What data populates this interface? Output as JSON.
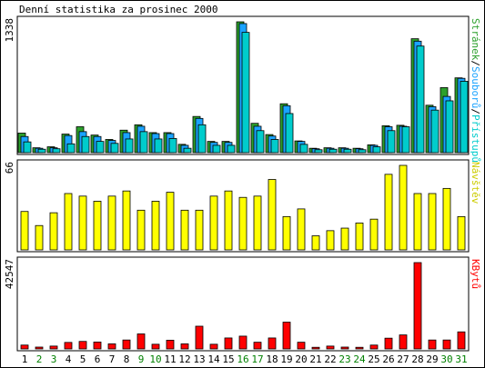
{
  "title": "Denní statistika za prosinec 2000",
  "colors": {
    "background": "#ffffff",
    "panel_bg": "#ffffff",
    "border": "#000000",
    "pages": "#2ca02c",
    "files": "#1aa3ff",
    "hits": "#00cccc",
    "visits": "#ffff00",
    "kbytes": "#ff0000",
    "weekday_label": "#000000",
    "weekend_label": "#008000"
  },
  "chart_data": [
    {
      "type": "bar",
      "id": "hits-files-pages",
      "max_label": "1338",
      "right_label_parts": [
        {
          "text": "Stránek",
          "color": "#2ca02c"
        },
        {
          "text": "/",
          "color": "#000000"
        },
        {
          "text": "Souborů",
          "color": "#1aa3ff"
        },
        {
          "text": "/",
          "color": "#000000"
        },
        {
          "text": "Přístupů",
          "color": "#00cccc"
        }
      ],
      "ylim": [
        0,
        1338
      ],
      "categories": [
        "1",
        "2",
        "3",
        "4",
        "5",
        "6",
        "7",
        "8",
        "9",
        "10",
        "11",
        "12",
        "13",
        "14",
        "15",
        "16",
        "17",
        "18",
        "19",
        "20",
        "21",
        "22",
        "23",
        "24",
        "25",
        "26",
        "27",
        "28",
        "29",
        "30",
        "31"
      ],
      "weekend_days": [
        "2",
        "3",
        "9",
        "10",
        "16",
        "17",
        "23",
        "24",
        "30",
        "31"
      ],
      "series": [
        {
          "name": "Stránek",
          "color": "#2ca02c",
          "values": [
            200,
            50,
            60,
            190,
            265,
            180,
            135,
            230,
            285,
            205,
            205,
            85,
            370,
            115,
            115,
            1338,
            300,
            185,
            500,
            120,
            45,
            50,
            50,
            45,
            80,
            275,
            280,
            1165,
            485,
            665,
            765
          ]
        },
        {
          "name": "Souborů",
          "color": "#1aa3ff",
          "values": [
            165,
            45,
            50,
            175,
            215,
            165,
            125,
            205,
            270,
            195,
            195,
            75,
            350,
            105,
            105,
            1320,
            270,
            170,
            480,
            115,
            40,
            45,
            45,
            40,
            75,
            265,
            270,
            1140,
            470,
            575,
            760
          ]
        },
        {
          "name": "Přístupů",
          "color": "#00cccc",
          "values": [
            110,
            35,
            40,
            90,
            165,
            115,
            95,
            140,
            215,
            140,
            145,
            45,
            285,
            75,
            75,
            1230,
            225,
            135,
            400,
            85,
            30,
            35,
            35,
            30,
            60,
            225,
            265,
            1090,
            435,
            530,
            730
          ]
        }
      ]
    },
    {
      "type": "bar",
      "id": "visits",
      "max_label": "66",
      "right_label_parts": [
        {
          "text": "Návštěv",
          "color": "#cccc00"
        }
      ],
      "ylim": [
        0,
        66
      ],
      "categories": [
        "1",
        "2",
        "3",
        "4",
        "5",
        "6",
        "7",
        "8",
        "9",
        "10",
        "11",
        "12",
        "13",
        "14",
        "15",
        "16",
        "17",
        "18",
        "19",
        "20",
        "21",
        "22",
        "23",
        "24",
        "25",
        "26",
        "27",
        "28",
        "29",
        "30",
        "31"
      ],
      "series": [
        {
          "name": "Návštěv",
          "color": "#ffff00",
          "values": [
            30,
            19,
            29,
            44,
            42,
            38,
            42,
            46,
            31,
            38,
            45,
            31,
            31,
            42,
            46,
            41,
            42,
            55,
            26,
            32,
            11,
            15,
            17,
            21,
            24,
            59,
            66,
            44,
            44,
            48,
            26
          ]
        }
      ]
    },
    {
      "type": "bar",
      "id": "kbytes",
      "max_label": "42547",
      "right_label_parts": [
        {
          "text": "KBytů",
          "color": "#ff0000"
        }
      ],
      "ylim": [
        0,
        42547
      ],
      "categories": [
        "1",
        "2",
        "3",
        "4",
        "5",
        "6",
        "7",
        "8",
        "9",
        "10",
        "11",
        "12",
        "13",
        "14",
        "15",
        "16",
        "17",
        "18",
        "19",
        "20",
        "21",
        "22",
        "23",
        "24",
        "25",
        "26",
        "27",
        "28",
        "29",
        "30",
        "31"
      ],
      "series": [
        {
          "name": "KBytů",
          "color": "#ff0000",
          "values": [
            1900,
            900,
            1400,
            3200,
            3700,
            3400,
            2500,
            4400,
            7400,
            2300,
            4300,
            2500,
            11200,
            2300,
            5400,
            6300,
            3300,
            5400,
            13200,
            3300,
            800,
            1400,
            900,
            800,
            1900,
            5300,
            6900,
            42547,
            4400,
            4400,
            8400
          ]
        }
      ]
    }
  ]
}
